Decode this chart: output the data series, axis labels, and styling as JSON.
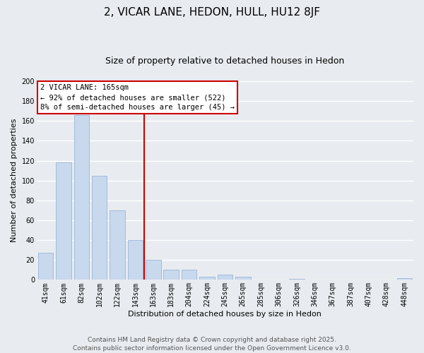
{
  "title": "2, VICAR LANE, HEDON, HULL, HU12 8JF",
  "subtitle": "Size of property relative to detached houses in Hedon",
  "xlabel": "Distribution of detached houses by size in Hedon",
  "ylabel": "Number of detached properties",
  "categories": [
    "41sqm",
    "61sqm",
    "82sqm",
    "102sqm",
    "122sqm",
    "143sqm",
    "163sqm",
    "183sqm",
    "204sqm",
    "224sqm",
    "245sqm",
    "265sqm",
    "285sqm",
    "306sqm",
    "326sqm",
    "346sqm",
    "367sqm",
    "387sqm",
    "407sqm",
    "428sqm",
    "448sqm"
  ],
  "values": [
    27,
    118,
    166,
    105,
    70,
    40,
    20,
    10,
    10,
    3,
    5,
    3,
    0,
    0,
    1,
    0,
    0,
    0,
    0,
    0,
    2
  ],
  "bar_color": "#c8d8ed",
  "bar_edge_color": "#9ab5d5",
  "vline_color": "#cc0000",
  "annotation_title": "2 VICAR LANE: 165sqm",
  "annotation_line1": "← 92% of detached houses are smaller (522)",
  "annotation_line2": "8% of semi-detached houses are larger (45) →",
  "annotation_box_facecolor": "#ffffff",
  "annotation_box_edgecolor": "#cc0000",
  "ylim": [
    0,
    200
  ],
  "yticks": [
    0,
    20,
    40,
    60,
    80,
    100,
    120,
    140,
    160,
    180,
    200
  ],
  "footnote1": "Contains HM Land Registry data © Crown copyright and database right 2025.",
  "footnote2": "Contains public sector information licensed under the Open Government Licence v3.0.",
  "fig_facecolor": "#e8ecf0",
  "plot_facecolor": "#e8ecf0",
  "grid_color": "#ffffff",
  "title_fontsize": 11,
  "subtitle_fontsize": 9,
  "axis_label_fontsize": 8,
  "tick_fontsize": 7,
  "footnote_fontsize": 6.5,
  "annotation_fontsize": 7.5,
  "vline_x_index": 6
}
